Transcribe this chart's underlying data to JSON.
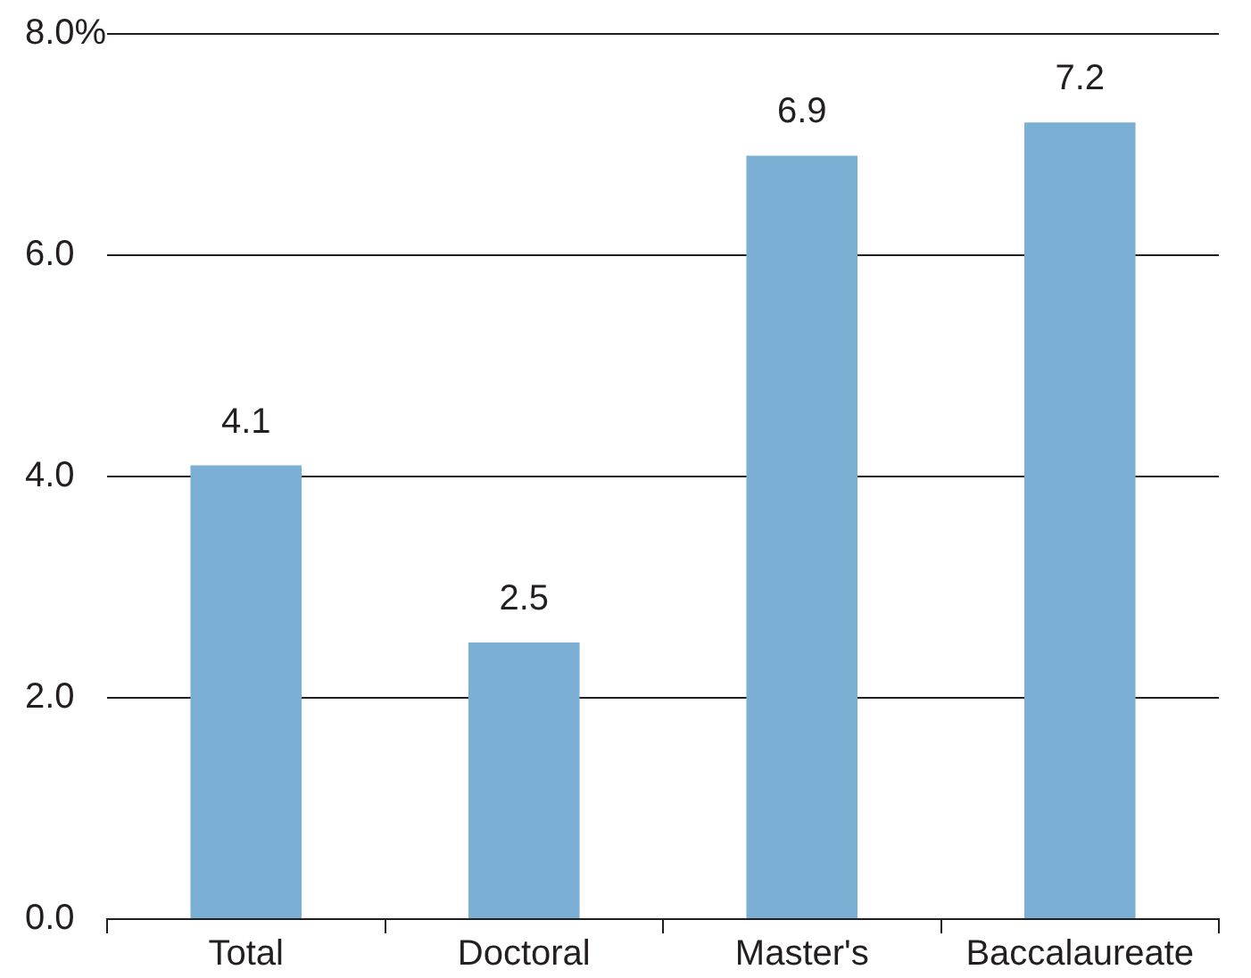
{
  "chart_data": {
    "type": "bar",
    "categories": [
      "Total",
      "Doctoral",
      "Master's",
      "Baccalaureate"
    ],
    "values": [
      4.1,
      2.5,
      6.9,
      7.2
    ],
    "color": "#7bafd4",
    "ylim": [
      0,
      8
    ],
    "yticks": [
      {
        "value": 0,
        "label": "0.0"
      },
      {
        "value": 2,
        "label": "2.0"
      },
      {
        "value": 4,
        "label": "4.0"
      },
      {
        "value": 6,
        "label": "6.0"
      },
      {
        "value": 8,
        "label": "8.0%"
      }
    ],
    "grid": "y",
    "data_labels": true
  }
}
